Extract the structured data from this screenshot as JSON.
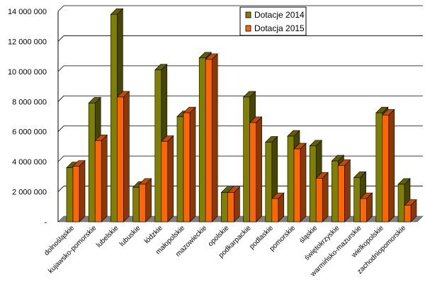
{
  "chart_data": {
    "type": "bar",
    "title": "",
    "xlabel": "",
    "ylabel": "",
    "ylim": [
      0,
      14000000
    ],
    "yticks": [
      0,
      2000000,
      4000000,
      6000000,
      8000000,
      10000000,
      12000000,
      14000000
    ],
    "ytick_labels": [
      "-",
      "2 000 000",
      "4 000 000",
      "6 000 000",
      "8 000 000",
      "10 000 000",
      "12 000 000",
      "14 000 000"
    ],
    "grid": true,
    "legend_position": "top-right",
    "style": "3d-clustered-column",
    "categories": [
      "dolnośląskie",
      "kujawsko-pomorskie",
      "lubelskie",
      "lubuskie",
      "łódzkie",
      "małopolskie",
      "mazowieckie",
      "opolskie",
      "podkarpackie",
      "podlaskie",
      "pomorskie",
      "śląskie",
      "świętokrzyskie",
      "warmińsko-mazurskie",
      "wielkopolskie",
      "zachodniopomorskie"
    ],
    "series": [
      {
        "name": "Dotacje 2014",
        "color": "#808000",
        "values": [
          3600000,
          7900000,
          13800000,
          2300000,
          10100000,
          7000000,
          10900000,
          1950000,
          8300000,
          5300000,
          5700000,
          5050000,
          4050000,
          2950000,
          7250000,
          2500000
        ]
      },
      {
        "name": "Dotacja 2015",
        "color": "#ff6600",
        "values": [
          3700000,
          5400000,
          8300000,
          2500000,
          5350000,
          7250000,
          10800000,
          1950000,
          6600000,
          1550000,
          4850000,
          2900000,
          3750000,
          1550000,
          7100000,
          1100000
        ]
      }
    ]
  }
}
